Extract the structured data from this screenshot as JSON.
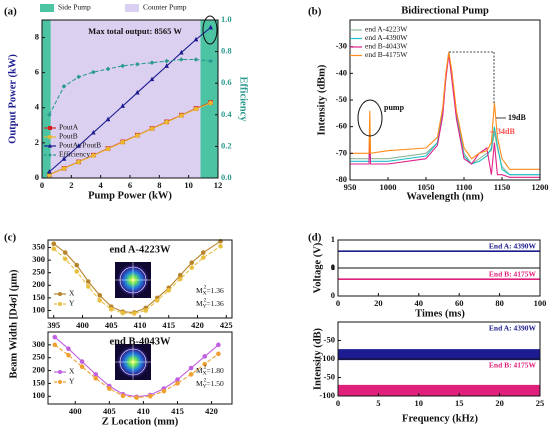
{
  "chart_data": [
    {
      "type": "line",
      "panel": "(a)",
      "xlabel": "Pump Power (kW)",
      "ylabel": "Output Power (kW)",
      "y2label": "Efficiency",
      "annotation": "Max total output: 8565 W",
      "regions": [
        {
          "name": "Side Pump",
          "color": "#4cc4a4",
          "spans": [
            [
              0,
              0.6
            ],
            [
              10.8,
              12
            ]
          ]
        },
        {
          "name": "Counter Pump",
          "color": "#dcd0f0",
          "spans": [
            [
              0.6,
              10.8
            ]
          ]
        }
      ],
      "xlim": [
        0,
        12
      ],
      "xticks": [
        0,
        2,
        4,
        6,
        8,
        10,
        12
      ],
      "ylim": [
        0,
        9
      ],
      "yticks": [
        0,
        2,
        4,
        6,
        8
      ],
      "y2lim": [
        0,
        1
      ],
      "y2ticks": [
        {
          "value": 0,
          "label": "0.0"
        },
        0.2,
        0.4,
        0.6,
        0.8,
        {
          "value": 1,
          "label": "1.0"
        }
      ],
      "x": [
        0.5,
        1.5,
        2.5,
        3.5,
        4.5,
        5.5,
        6.5,
        7.5,
        8.5,
        9.5,
        10.5,
        11.5
      ],
      "series": [
        {
          "name": "PoutA",
          "color": "#d62020",
          "marker": "square",
          "values": [
            0.18,
            0.55,
            0.92,
            1.3,
            1.68,
            2.06,
            2.44,
            2.82,
            3.2,
            3.58,
            3.96,
            4.3
          ]
        },
        {
          "name": "PoutB",
          "color": "#e8b830",
          "marker": "circle",
          "values": [
            0.17,
            0.54,
            0.91,
            1.28,
            1.66,
            2.04,
            2.42,
            2.8,
            3.18,
            3.56,
            3.93,
            4.27
          ]
        },
        {
          "name": "PoutA+PoutB",
          "color": "#1c1c90",
          "marker": "triangle",
          "values": [
            0.35,
            1.09,
            1.83,
            2.58,
            3.34,
            4.1,
            4.86,
            5.62,
            6.38,
            7.14,
            7.89,
            8.57
          ]
        },
        {
          "name": "Efficiency",
          "color": "#2a9a8e",
          "marker": "diamond",
          "axis": "y2",
          "dash": true,
          "values": [
            0.4,
            0.58,
            0.64,
            0.67,
            0.69,
            0.71,
            0.72,
            0.73,
            0.74,
            0.75,
            0.75,
            0.74
          ]
        }
      ]
    },
    {
      "type": "line",
      "panel": "(b)",
      "title": "Bidirectional Pump",
      "xlabel": "Wavelength (nm)",
      "ylabel": "Intensity (dBm)",
      "annotations": [
        "pump",
        "19dB",
        "34dB"
      ],
      "xlim": [
        950,
        1200
      ],
      "xticks": [
        950,
        1000,
        1050,
        1100,
        1150,
        1200
      ],
      "ylim": [
        -80,
        -20
      ],
      "yticks": [
        -80,
        -70,
        -60,
        -50,
        -40,
        -30
      ],
      "x": [
        950,
        975,
        976,
        977,
        1000,
        1050,
        1065,
        1072,
        1076,
        1080,
        1084,
        1090,
        1100,
        1110,
        1120,
        1130,
        1136,
        1140,
        1144,
        1150,
        1160,
        1200
      ],
      "series": [
        {
          "name": "end A-4223W",
          "color": "#8fb89a",
          "values": [
            -72,
            -72,
            -58,
            -72,
            -72,
            -70,
            -66,
            -55,
            -42,
            -32,
            -40,
            -55,
            -70,
            -74,
            -72,
            -70,
            -69,
            -62,
            -68,
            -75,
            -78,
            -78
          ]
        },
        {
          "name": "end A-4390W",
          "color": "#20c0c8",
          "values": [
            -73,
            -73,
            -60,
            -73,
            -73,
            -71,
            -66,
            -54,
            -41,
            -32,
            -40,
            -56,
            -71,
            -74,
            -73,
            -71,
            -68,
            -60,
            -67,
            -76,
            -78,
            -78
          ]
        },
        {
          "name": "end B-4043W",
          "color": "#e0208a",
          "values": [
            -74,
            -74,
            -62,
            -74,
            -74,
            -72,
            -67,
            -56,
            -42,
            -33,
            -42,
            -57,
            -72,
            -74,
            -70,
            -68,
            -78,
            -66,
            -78,
            -78,
            -79,
            -79
          ]
        },
        {
          "name": "end B-4175W",
          "color": "#ff8c1a",
          "values": [
            -70,
            -70,
            -54,
            -70,
            -69,
            -68,
            -64,
            -53,
            -40,
            -32,
            -39,
            -54,
            -68,
            -72,
            -70,
            -69,
            -66,
            -51,
            -64,
            -72,
            -76,
            -76
          ]
        }
      ]
    },
    {
      "type": "scatter",
      "panel": "(c)",
      "title": "end A-4223W",
      "ylabel": "Beam Width [D4σ] (μm)",
      "m2": [
        {
          "base": "M",
          "sub": "X",
          "sup": "2",
          "rest": "=1.36"
        },
        {
          "base": "M",
          "sub": "Y",
          "sup": "2",
          "rest": "=1.36"
        }
      ],
      "xlim": [
        394,
        426
      ],
      "xticks": [
        395,
        400,
        405,
        410,
        415,
        420,
        425
      ],
      "ylim": [
        70,
        380
      ],
      "yticks": [
        100,
        150,
        200,
        250,
        300,
        350
      ],
      "x": [
        395,
        397,
        399,
        401,
        403,
        405,
        407,
        409,
        411,
        413,
        415,
        417,
        419,
        421,
        424
      ],
      "series": [
        {
          "name": "X",
          "color": "#b8842a",
          "marker": "circle",
          "values": [
            365,
            330,
            280,
            215,
            160,
            115,
            95,
            92,
            110,
            150,
            190,
            240,
            290,
            330,
            375
          ]
        },
        {
          "name": "Y",
          "color": "#e8c040",
          "marker": "circle",
          "dash": true,
          "values": [
            345,
            305,
            255,
            195,
            140,
            105,
            90,
            88,
            100,
            140,
            180,
            225,
            270,
            310,
            355
          ]
        }
      ]
    },
    {
      "type": "scatter",
      "title": "end B-4043W",
      "xlabel": "Z Location (mm)",
      "m2": [
        {
          "base": "M",
          "sub": "X",
          "sup": "2",
          "rest": "=1.80"
        },
        {
          "base": "M",
          "sub": "Y",
          "sup": "2",
          "rest": "=1.50"
        }
      ],
      "xlim": [
        396,
        423
      ],
      "xticks": [
        400,
        405,
        410,
        415,
        420
      ],
      "ylim": [
        70,
        350
      ],
      "yticks": [
        100,
        150,
        200,
        250,
        300
      ],
      "x": [
        397,
        399,
        401,
        403,
        405,
        407,
        409,
        411,
        413,
        415,
        417,
        419,
        421
      ],
      "series": [
        {
          "name": "X",
          "color": "#c060e0",
          "marker": "circle",
          "values": [
            330,
            285,
            235,
            185,
            140,
            108,
            98,
            105,
            130,
            165,
            210,
            255,
            300
          ]
        },
        {
          "name": "Y",
          "color": "#f0a030",
          "marker": "circle",
          "dash": true,
          "values": [
            300,
            260,
            215,
            170,
            130,
            102,
            95,
            100,
            120,
            150,
            185,
            225,
            265
          ]
        }
      ]
    },
    {
      "type": "line",
      "panel": "(d)",
      "strips": true,
      "xlabel": "Times (ms)",
      "ylabel": "Voltage (V)",
      "xlim": [
        0,
        100
      ],
      "xticks": [
        0,
        20,
        40,
        60,
        80,
        100
      ],
      "ylim": [
        0,
        1
      ],
      "yticks": [
        0,
        1
      ],
      "x": [
        0,
        100
      ],
      "series": [
        {
          "name": "End A: 4390W",
          "color": "#1c1c90",
          "values": [
            0.6,
            0.6
          ]
        },
        {
          "name": "End B: 4175W",
          "color": "#e0207a",
          "values": [
            0.6,
            0.6
          ]
        }
      ]
    },
    {
      "type": "line",
      "strips": true,
      "xlabel": "Frequency (kHz)",
      "ylabel": "Intensity (dB)",
      "xlim": [
        0,
        25
      ],
      "xticks": [
        0,
        5,
        10,
        15,
        20,
        25
      ],
      "ylim": [
        -100,
        0
      ],
      "yticks": [
        -100,
        -50
      ],
      "x": [
        0,
        25
      ],
      "series": [
        {
          "name": "End A: 4390W",
          "color": "#1c1c90",
          "values": [
            -88,
            -88
          ]
        },
        {
          "name": "End B: 4175W",
          "color": "#e0207a",
          "values": [
            -85,
            -85
          ]
        }
      ]
    }
  ]
}
